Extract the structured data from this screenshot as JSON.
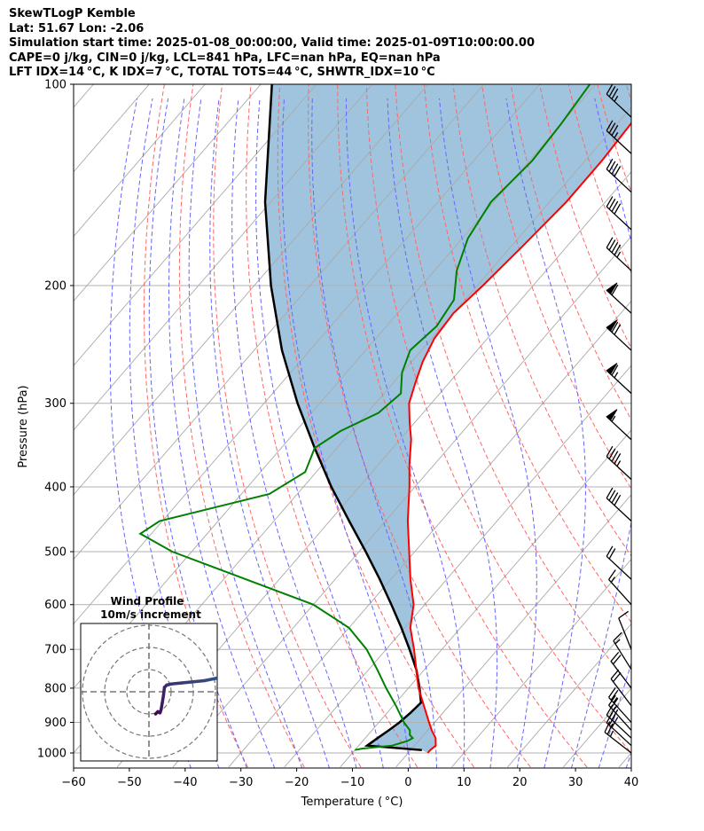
{
  "header": {
    "line1": "SkewTLogP Kemble",
    "line2": "Lat: 51.67   Lon: -2.06",
    "line3": "Simulation start time: 2025-01-08_00:00:00, Valid time: 2025-01-09T10:00:00.00",
    "line4": "CAPE=0 j/kg, CIN=0 j/kg, LCL=841 hPa, LFC=nan hPa, EQ=nan hPa",
    "line5": "LFT IDX=14 °C, K IDX=7 °C, TOTAL TOTS=44 °C, SHWTR_IDX=10 °C"
  },
  "colors": {
    "temperature": "#ff0000",
    "dewpoint": "#008000",
    "parcel": "#000000",
    "cape_fill": "#a0c4de",
    "dry_adiabat": "#ff6666",
    "moist_adiabat": "#6666ff",
    "isotherm": "#aaaaaa"
  },
  "chart_data": [
    {
      "type": "line",
      "title": "",
      "xlabel": "Temperature ( °C)",
      "ylabel": "Pressure (hPa)",
      "xlim": [
        -60,
        40
      ],
      "ylim": [
        1050,
        100
      ],
      "y_scale": "log",
      "grid": true,
      "x_ticks": [
        -60,
        -50,
        -40,
        -30,
        -20,
        -10,
        0,
        10,
        20,
        30,
        40
      ],
      "y_ticks": [
        100,
        200,
        300,
        400,
        500,
        600,
        700,
        800,
        900,
        1000
      ],
      "series": [
        {
          "key": "temperature",
          "pressure": [
            1000,
            990,
            975,
            950,
            925,
            900,
            850,
            800,
            750,
            700,
            650,
            600,
            550,
            500,
            450,
            400,
            370,
            340,
            320,
            300,
            280,
            260,
            240,
            220,
            200,
            175,
            150,
            130,
            115,
            100
          ],
          "values": [
            3.5,
            3.5,
            3.8,
            2.6,
            0.7,
            -1.0,
            -4.5,
            -8.2,
            -11.5,
            -15.0,
            -19.0,
            -22.0,
            -26.5,
            -31.0,
            -36.0,
            -41.0,
            -44.5,
            -48.0,
            -51.0,
            -54.0,
            -56.0,
            -58.0,
            -59.5,
            -60.0,
            -59.0,
            -58.0,
            -57.0,
            -57.0,
            -57.5,
            -58.0
          ]
        },
        {
          "key": "dewpoint",
          "pressure": [
            990,
            985,
            975,
            960,
            950,
            940,
            925,
            900,
            850,
            800,
            750,
            700,
            650,
            600,
            550,
            500,
            470,
            450,
            410,
            380,
            350,
            330,
            310,
            290,
            270,
            250,
            230,
            210,
            190,
            170,
            150,
            130,
            115,
            100
          ],
          "values": [
            -10.0,
            -9.0,
            -4.0,
            -2.0,
            -1.5,
            -2.5,
            -3.2,
            -5.5,
            -9.5,
            -14.0,
            -18.5,
            -23.5,
            -30.0,
            -40.0,
            -56.0,
            -73.5,
            -82.0,
            -80.5,
            -65.0,
            -62.0,
            -64.0,
            -62.0,
            -58.0,
            -57.0,
            -60.0,
            -62.0,
            -61.0,
            -62.0,
            -66.0,
            -69.0,
            -70.5,
            -69.5,
            -70.0,
            -71.0
          ]
        }
      ],
      "parcel": {
        "pressure": [
          990,
          975,
          950,
          925,
          900,
          870,
          841,
          800,
          750,
          700,
          650,
          600,
          550,
          500,
          450,
          400,
          350,
          300,
          250,
          200,
          150,
          100
        ],
        "values": [
          2.0,
          -8.5,
          -7.8,
          -7.0,
          -6.3,
          -5.8,
          -5.5,
          -8.0,
          -11.5,
          -15.8,
          -20.6,
          -26.0,
          -32.0,
          -38.8,
          -46.5,
          -55.0,
          -64.0,
          -74.0,
          -85.0,
          -97.0,
          -111.0,
          -128.0
        ]
      },
      "lcl_hpa": 841,
      "wind_barbs": [
        {
          "pressure": 1000,
          "speed_kt": 25,
          "direction": 290
        },
        {
          "pressure": 975,
          "speed_kt": 30,
          "direction": 295
        },
        {
          "pressure": 950,
          "speed_kt": 30,
          "direction": 295
        },
        {
          "pressure": 925,
          "speed_kt": 25,
          "direction": 300
        },
        {
          "pressure": 900,
          "speed_kt": 25,
          "direction": 300
        },
        {
          "pressure": 850,
          "speed_kt": 20,
          "direction": 305
        },
        {
          "pressure": 800,
          "speed_kt": 20,
          "direction": 305
        },
        {
          "pressure": 750,
          "speed_kt": 15,
          "direction": 310
        },
        {
          "pressure": 700,
          "speed_kt": 10,
          "direction": 320
        },
        {
          "pressure": 600,
          "speed_kt": 15,
          "direction": 300
        },
        {
          "pressure": 550,
          "speed_kt": 20,
          "direction": 295
        },
        {
          "pressure": 450,
          "speed_kt": 40,
          "direction": 295
        },
        {
          "pressure": 390,
          "speed_kt": 45,
          "direction": 295
        },
        {
          "pressure": 340,
          "speed_kt": 55,
          "direction": 295
        },
        {
          "pressure": 290,
          "speed_kt": 65,
          "direction": 295
        },
        {
          "pressure": 250,
          "speed_kt": 70,
          "direction": 295
        },
        {
          "pressure": 220,
          "speed_kt": 60,
          "direction": 295
        },
        {
          "pressure": 190,
          "speed_kt": 45,
          "direction": 295
        },
        {
          "pressure": 165,
          "speed_kt": 40,
          "direction": 295
        },
        {
          "pressure": 145,
          "speed_kt": 40,
          "direction": 295
        },
        {
          "pressure": 127,
          "speed_kt": 35,
          "direction": 295
        },
        {
          "pressure": 112,
          "speed_kt": 35,
          "direction": 295
        }
      ]
    },
    {
      "type": "scatter",
      "title": "Wind Profile",
      "subtitle": "10m/s increment",
      "rings": [
        10,
        20,
        30
      ],
      "hodograph_uv": [
        [
          3,
          10
        ],
        [
          4,
          9
        ],
        [
          5,
          9.5
        ],
        [
          5.5,
          8
        ],
        [
          6,
          5
        ],
        [
          6.5,
          2
        ],
        [
          7,
          -2
        ],
        [
          8,
          -3
        ],
        [
          10,
          -3.5
        ],
        [
          15,
          -4
        ],
        [
          20,
          -4.5
        ],
        [
          25,
          -5
        ],
        [
          30,
          -6
        ],
        [
          35,
          -8
        ],
        [
          40,
          -10
        ],
        [
          43,
          -11
        ]
      ]
    }
  ]
}
